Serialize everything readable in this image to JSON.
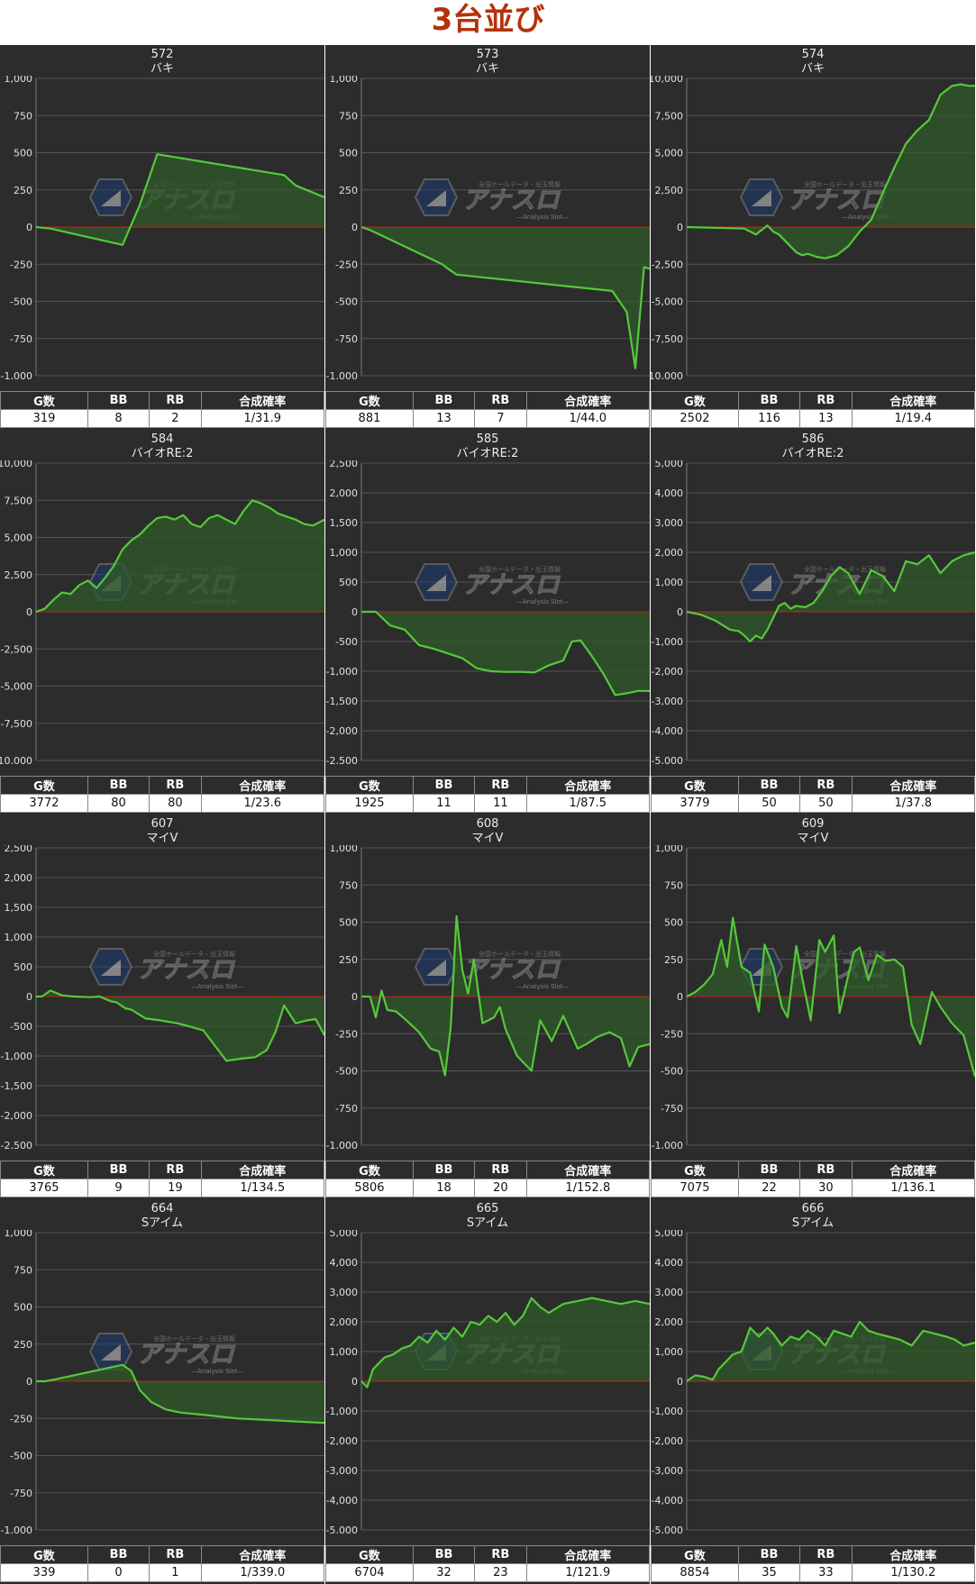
{
  "page_title": "3台並び",
  "table_headers": [
    "G数",
    "BB",
    "RB",
    "合成確率"
  ],
  "watermark": {
    "brand": "アナスロ",
    "tagline": "全国ホールデータ・出玉情報",
    "sub": "Analysis Slot"
  },
  "colors": {
    "line": "#55c93a",
    "fill": "#2f5a29",
    "zero": "#c82010",
    "bg": "#2c2c2c",
    "title": "#b5310c"
  },
  "chart_data": [
    {
      "type": "area",
      "machine_no": "572",
      "model": "バキ",
      "ylim": [
        -1000,
        1000
      ],
      "yticks": [
        1000,
        750,
        500,
        250,
        0,
        -250,
        -500,
        -750,
        -1000
      ],
      "x": [
        0,
        0.05,
        0.3,
        0.36,
        0.42,
        0.86,
        0.9,
        1
      ],
      "y": [
        0,
        -10,
        -120,
        150,
        490,
        350,
        280,
        200
      ],
      "stats": {
        "games": "319",
        "bb": "8",
        "rb": "2",
        "prob": "1/31.9"
      }
    },
    {
      "type": "area",
      "machine_no": "573",
      "model": "バキ",
      "ylim": [
        -1000,
        1000
      ],
      "yticks": [
        1000,
        750,
        500,
        250,
        0,
        -250,
        -500,
        -750,
        -1000
      ],
      "x": [
        0,
        0.03,
        0.28,
        0.3,
        0.33,
        0.87,
        0.92,
        0.95,
        0.98,
        1
      ],
      "y": [
        0,
        -20,
        -250,
        -280,
        -320,
        -430,
        -570,
        -950,
        -270,
        -280
      ],
      "stats": {
        "games": "881",
        "bb": "13",
        "rb": "7",
        "prob": "1/44.0"
      }
    },
    {
      "type": "area",
      "machine_no": "574",
      "model": "バキ",
      "ylim": [
        -10000,
        10000
      ],
      "yticks": [
        10000,
        7500,
        5000,
        2500,
        0,
        -2500,
        -5000,
        -7500,
        -10000
      ],
      "x": [
        0,
        0.2,
        0.22,
        0.24,
        0.26,
        0.28,
        0.3,
        0.32,
        0.35,
        0.38,
        0.4,
        0.42,
        0.45,
        0.48,
        0.52,
        0.56,
        0.6,
        0.64,
        0.68,
        0.72,
        0.76,
        0.8,
        0.84,
        0.88,
        0.92,
        0.95,
        0.98,
        1
      ],
      "y": [
        0,
        -100,
        -300,
        -500,
        -200,
        100,
        -300,
        -500,
        -1100,
        -1700,
        -1900,
        -1800,
        -2000,
        -2100,
        -1900,
        -1300,
        -300,
        500,
        2300,
        4000,
        5600,
        6500,
        7200,
        8900,
        9500,
        9600,
        9500,
        9500
      ],
      "stats": {
        "games": "2502",
        "bb": "116",
        "rb": "13",
        "prob": "1/19.4"
      }
    },
    {
      "type": "area",
      "machine_no": "584",
      "model": "バイオRE:2",
      "ylim": [
        -10000,
        10000
      ],
      "yticks": [
        10000,
        7500,
        5000,
        2500,
        0,
        -2500,
        -5000,
        -7500,
        -10000
      ],
      "x": [
        0,
        0.03,
        0.06,
        0.09,
        0.12,
        0.15,
        0.18,
        0.21,
        0.24,
        0.27,
        0.3,
        0.33,
        0.36,
        0.39,
        0.42,
        0.45,
        0.48,
        0.51,
        0.54,
        0.57,
        0.6,
        0.63,
        0.66,
        0.69,
        0.72,
        0.75,
        0.78,
        0.81,
        0.84,
        0.87,
        0.9,
        0.93,
        0.96,
        1
      ],
      "y": [
        0,
        200,
        800,
        1300,
        1200,
        1800,
        2100,
        1600,
        2300,
        3100,
        4200,
        4800,
        5200,
        5800,
        6300,
        6400,
        6200,
        6500,
        5900,
        5700,
        6300,
        6500,
        6200,
        5900,
        6800,
        7500,
        7300,
        7000,
        6600,
        6400,
        6200,
        5900,
        5800,
        6200
      ],
      "stats": {
        "games": "3772",
        "bb": "80",
        "rb": "80",
        "prob": "1/23.6"
      }
    },
    {
      "type": "area",
      "machine_no": "585",
      "model": "バイオRE:2",
      "ylim": [
        -2500,
        2500
      ],
      "yticks": [
        2500,
        2000,
        1500,
        1000,
        500,
        0,
        -500,
        -1000,
        -1500,
        -2000,
        -2500
      ],
      "x": [
        0,
        0.05,
        0.1,
        0.15,
        0.2,
        0.25,
        0.3,
        0.35,
        0.4,
        0.45,
        0.5,
        0.55,
        0.6,
        0.65,
        0.7,
        0.73,
        0.76,
        0.8,
        0.84,
        0.88,
        0.92,
        0.96,
        1
      ],
      "y": [
        0,
        0,
        -230,
        -300,
        -560,
        -620,
        -700,
        -780,
        -950,
        -1000,
        -1010,
        -1010,
        -1020,
        -900,
        -820,
        -500,
        -480,
        -750,
        -1050,
        -1400,
        -1370,
        -1330,
        -1330
      ],
      "stats": {
        "games": "1925",
        "bb": "11",
        "rb": "11",
        "prob": "1/87.5"
      }
    },
    {
      "type": "area",
      "machine_no": "586",
      "model": "バイオRE:2",
      "ylim": [
        -5000,
        5000
      ],
      "yticks": [
        5000,
        4000,
        3000,
        2000,
        1000,
        0,
        -1000,
        -2000,
        -3000,
        -4000,
        -5000
      ],
      "x": [
        0,
        0.05,
        0.1,
        0.15,
        0.18,
        0.2,
        0.22,
        0.24,
        0.26,
        0.28,
        0.3,
        0.32,
        0.34,
        0.36,
        0.38,
        0.41,
        0.44,
        0.47,
        0.5,
        0.53,
        0.56,
        0.6,
        0.64,
        0.68,
        0.72,
        0.76,
        0.8,
        0.84,
        0.88,
        0.92,
        0.96,
        1
      ],
      "y": [
        0,
        -100,
        -300,
        -600,
        -650,
        -800,
        -1000,
        -800,
        -900,
        -600,
        -200,
        200,
        300,
        100,
        200,
        150,
        300,
        700,
        1200,
        1500,
        1300,
        600,
        1400,
        1200,
        700,
        1700,
        1600,
        1900,
        1300,
        1700,
        1900,
        2000
      ],
      "stats": {
        "games": "3779",
        "bb": "50",
        "rb": "50",
        "prob": "1/37.8"
      }
    },
    {
      "type": "area",
      "machine_no": "607",
      "model": "マイV",
      "ylim": [
        -2500,
        2500
      ],
      "yticks": [
        2500,
        2000,
        1500,
        1000,
        500,
        0,
        -500,
        -1000,
        -1500,
        -2000,
        -2500
      ],
      "x": [
        0,
        0.02,
        0.05,
        0.09,
        0.13,
        0.19,
        0.22,
        0.26,
        0.28,
        0.31,
        0.33,
        0.38,
        0.43,
        0.49,
        0.53,
        0.58,
        0.66,
        0.72,
        0.76,
        0.8,
        0.83,
        0.86,
        0.9,
        0.94,
        0.97,
        1
      ],
      "y": [
        0,
        0,
        100,
        20,
        0,
        -10,
        0,
        -80,
        -100,
        -200,
        -220,
        -370,
        -400,
        -450,
        -500,
        -570,
        -1080,
        -1040,
        -1020,
        -900,
        -600,
        -150,
        -450,
        -400,
        -380,
        -650
      ],
      "stats": {
        "games": "3765",
        "bb": "9",
        "rb": "19",
        "prob": "1/134.5"
      }
    },
    {
      "type": "area",
      "machine_no": "608",
      "model": "マイV",
      "ylim": [
        -1000,
        1000
      ],
      "yticks": [
        1000,
        750,
        500,
        250,
        0,
        -250,
        -500,
        -750,
        -1000
      ],
      "x": [
        0,
        0.03,
        0.05,
        0.07,
        0.09,
        0.12,
        0.15,
        0.2,
        0.24,
        0.27,
        0.29,
        0.31,
        0.33,
        0.35,
        0.37,
        0.39,
        0.42,
        0.46,
        0.48,
        0.5,
        0.54,
        0.59,
        0.62,
        0.66,
        0.7,
        0.75,
        0.78,
        0.82,
        0.86,
        0.9,
        0.93,
        0.96,
        1
      ],
      "y": [
        0,
        0,
        -140,
        40,
        -90,
        -100,
        -150,
        -240,
        -350,
        -370,
        -530,
        -200,
        540,
        180,
        20,
        250,
        -180,
        -140,
        -70,
        -220,
        -400,
        -500,
        -160,
        -300,
        -130,
        -350,
        -320,
        -270,
        -240,
        -280,
        -470,
        -340,
        -320
      ],
      "stats": {
        "games": "5806",
        "bb": "18",
        "rb": "20",
        "prob": "1/152.8"
      }
    },
    {
      "type": "area",
      "machine_no": "609",
      "model": "マイV",
      "ylim": [
        -1000,
        1000
      ],
      "yticks": [
        1000,
        750,
        500,
        250,
        0,
        -250,
        -500,
        -750,
        -1000
      ],
      "x": [
        0,
        0.03,
        0.06,
        0.09,
        0.12,
        0.14,
        0.16,
        0.19,
        0.22,
        0.25,
        0.27,
        0.3,
        0.33,
        0.35,
        0.38,
        0.4,
        0.43,
        0.46,
        0.48,
        0.51,
        0.53,
        0.56,
        0.58,
        0.6,
        0.63,
        0.66,
        0.69,
        0.72,
        0.75,
        0.78,
        0.81,
        0.85,
        0.88,
        0.92,
        0.96,
        1
      ],
      "y": [
        0,
        30,
        80,
        150,
        380,
        200,
        530,
        200,
        160,
        -100,
        350,
        200,
        -70,
        -140,
        340,
        130,
        -160,
        380,
        300,
        410,
        -110,
        140,
        300,
        330,
        110,
        280,
        240,
        250,
        200,
        -190,
        -320,
        30,
        -70,
        -180,
        -260,
        -540
      ],
      "stats": {
        "games": "7075",
        "bb": "22",
        "rb": "30",
        "prob": "1/136.1"
      }
    },
    {
      "type": "area",
      "machine_no": "664",
      "model": "Sアイム",
      "ylim": [
        -1000,
        1000
      ],
      "yticks": [
        1000,
        750,
        500,
        250,
        0,
        -250,
        -500,
        -750,
        -1000
      ],
      "x": [
        0,
        0.03,
        0.06,
        0.3,
        0.33,
        0.36,
        0.4,
        0.45,
        0.5,
        0.6,
        0.7,
        0.8,
        0.9,
        1
      ],
      "y": [
        0,
        0,
        10,
        110,
        70,
        -60,
        -140,
        -190,
        -210,
        -230,
        -250,
        -260,
        -270,
        -280
      ],
      "stats": {
        "games": "339",
        "bb": "0",
        "rb": "1",
        "prob": "1/339.0"
      }
    },
    {
      "type": "area",
      "machine_no": "665",
      "model": "Sアイム",
      "ylim": [
        -5000,
        5000
      ],
      "yticks": [
        5000,
        4000,
        3000,
        2000,
        1000,
        0,
        -1000,
        -2000,
        -3000,
        -4000,
        -5000
      ],
      "x": [
        0,
        0.02,
        0.04,
        0.06,
        0.08,
        0.11,
        0.14,
        0.17,
        0.2,
        0.23,
        0.26,
        0.29,
        0.32,
        0.35,
        0.38,
        0.41,
        0.44,
        0.47,
        0.5,
        0.53,
        0.56,
        0.59,
        0.62,
        0.65,
        0.7,
        0.75,
        0.8,
        0.85,
        0.9,
        0.95,
        1
      ],
      "y": [
        0,
        -200,
        400,
        600,
        800,
        900,
        1100,
        1200,
        1500,
        1300,
        1700,
        1400,
        1800,
        1500,
        2000,
        1900,
        2200,
        2000,
        2300,
        1900,
        2200,
        2800,
        2500,
        2300,
        2600,
        2700,
        2800,
        2700,
        2600,
        2700,
        2600
      ],
      "stats": {
        "games": "6704",
        "bb": "32",
        "rb": "23",
        "prob": "1/121.9"
      }
    },
    {
      "type": "area",
      "machine_no": "666",
      "model": "Sアイム",
      "ylim": [
        -5000,
        5000
      ],
      "yticks": [
        5000,
        4000,
        3000,
        2000,
        1000,
        0,
        -1000,
        -2000,
        -3000,
        -4000,
        -5000
      ],
      "x": [
        0,
        0.03,
        0.06,
        0.09,
        0.11,
        0.13,
        0.16,
        0.19,
        0.22,
        0.25,
        0.28,
        0.3,
        0.33,
        0.36,
        0.39,
        0.42,
        0.45,
        0.48,
        0.51,
        0.54,
        0.57,
        0.6,
        0.63,
        0.66,
        0.7,
        0.74,
        0.78,
        0.82,
        0.86,
        0.9,
        0.93,
        0.96,
        1
      ],
      "y": [
        0,
        200,
        150,
        50,
        400,
        600,
        900,
        1000,
        1800,
        1500,
        1800,
        1600,
        1200,
        1500,
        1400,
        1700,
        1500,
        1200,
        1700,
        1600,
        1500,
        2000,
        1700,
        1600,
        1500,
        1400,
        1200,
        1700,
        1600,
        1500,
        1400,
        1200,
        1300
      ],
      "stats": {
        "games": "8854",
        "bb": "35",
        "rb": "33",
        "prob": "1/130.2"
      }
    }
  ]
}
